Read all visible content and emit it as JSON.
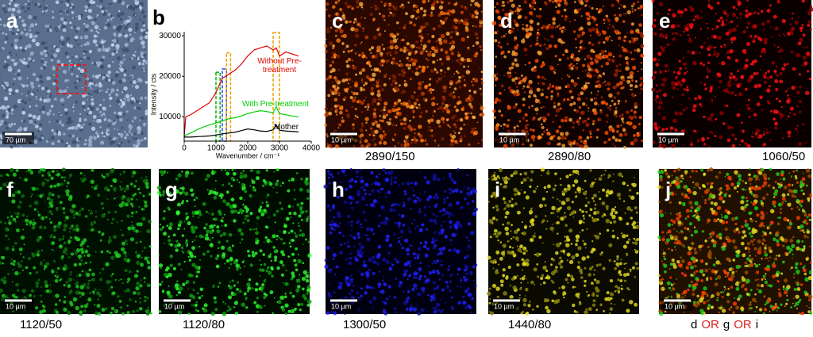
{
  "panels": [
    {
      "letter": "a",
      "scale": "70 µm"
    },
    {
      "letter": "b"
    },
    {
      "letter": "c",
      "scale": "10 µm",
      "caption": "2890/150"
    },
    {
      "letter": "d",
      "scale": "10 µm",
      "caption": "2890/80"
    },
    {
      "letter": "e",
      "scale": "10 µm",
      "caption": "1060/50"
    },
    {
      "letter": "f",
      "scale": "10 µm",
      "caption": "1120/50"
    },
    {
      "letter": "g",
      "scale": "10 µm",
      "caption": "1120/80"
    },
    {
      "letter": "h",
      "scale": "10 µm",
      "caption": "1300/50"
    },
    {
      "letter": "i",
      "scale": "10 µm",
      "caption": "1440/80"
    },
    {
      "letter": "j",
      "scale": "10 µm",
      "caption_parts": [
        "d",
        "OR",
        "g",
        "OR",
        "i"
      ]
    }
  ],
  "chart_data": {
    "type": "line",
    "x_label": "Wavenumber / cm⁻¹",
    "y_label": "Intensity / cts",
    "xlim": [
      0,
      4000
    ],
    "xticks": [
      0,
      1000,
      2000,
      3000,
      4000
    ],
    "ylim": [
      4000,
      31000
    ],
    "yticks": [
      10000,
      20000,
      30000
    ],
    "x": [
      0,
      50,
      200,
      400,
      600,
      800,
      1000,
      1200,
      1400,
      1600,
      1800,
      2000,
      2200,
      2400,
      2600,
      2800,
      2900,
      3000,
      3200,
      3400,
      3600
    ],
    "series": [
      {
        "name": "Without Pre-treatment",
        "color": "#e00000",
        "values": [
          5000,
          10000,
          10500,
          11500,
          12500,
          13500,
          16000,
          19500,
          20500,
          21500,
          23000,
          25000,
          26500,
          27000,
          27500,
          26500,
          27000,
          25000,
          26000,
          25500,
          25000
        ]
      },
      {
        "name": "With Pre-treatment",
        "color": "#00d000",
        "values": [
          5000,
          5500,
          6000,
          6800,
          7500,
          8000,
          8500,
          9000,
          9500,
          9800,
          10200,
          10800,
          11200,
          11500,
          11300,
          11000,
          12500,
          10800,
          10500,
          10200,
          10000
        ]
      },
      {
        "name": "Mother",
        "color": "#000000",
        "values": [
          5000,
          5000,
          5000,
          5100,
          5200,
          5300,
          5500,
          5800,
          6000,
          6200,
          6600,
          7000,
          6800,
          6500,
          6400,
          6800,
          8000,
          6700,
          6500,
          6400,
          6300
        ]
      }
    ],
    "bands": [
      {
        "xlim": [
          1000,
          1130
        ],
        "top": 21000,
        "color": "#00b000"
      },
      {
        "xlim": [
          1200,
          1330
        ],
        "top": 21800,
        "color": "#2040ff"
      },
      {
        "xlim": [
          1330,
          1460
        ],
        "top": 25800,
        "color": "#f0a000"
      },
      {
        "xlim": [
          2800,
          3000
        ],
        "top": 30800,
        "color": "#f0a000"
      }
    ]
  }
}
